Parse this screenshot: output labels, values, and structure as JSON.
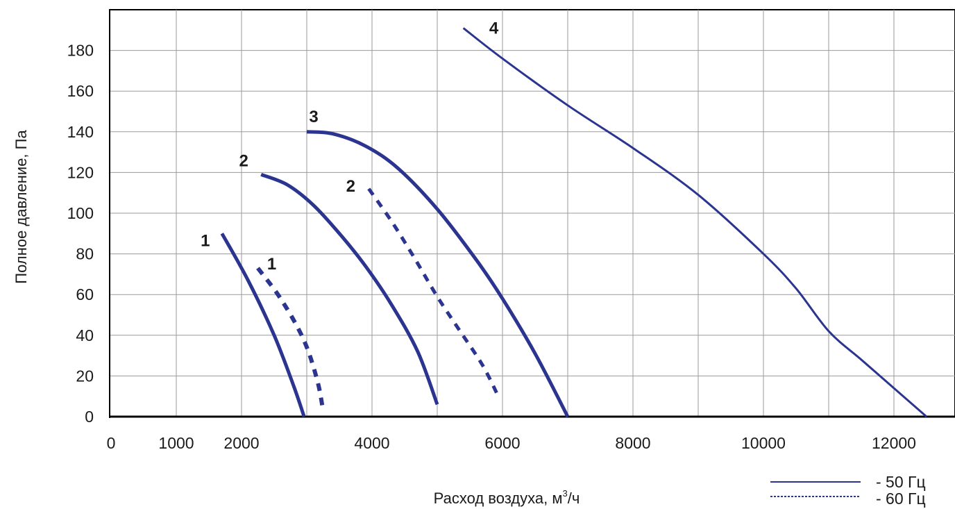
{
  "chart_data": {
    "type": "line",
    "xlabel": "Расход воздуха, м³/ч",
    "xlabel_main": "Расход воздуха, м",
    "xlabel_sup": "3",
    "xlabel_tail": "/ч",
    "ylabel": "Полное давление, Па",
    "xlim": [
      0,
      13000
    ],
    "ylim": [
      0,
      200
    ],
    "grid": true,
    "x_ticks": [
      0,
      1000,
      2000,
      4000,
      6000,
      8000,
      10000,
      12000
    ],
    "x_tick_labels": [
      "0",
      "1000",
      "2000",
      "4000",
      "6000",
      "8000",
      "10000",
      "12000"
    ],
    "y_ticks": [
      0,
      20,
      40,
      60,
      80,
      100,
      120,
      140,
      160,
      180
    ],
    "y_tick_labels": [
      "0",
      "20",
      "40",
      "60",
      "80",
      "100",
      "120",
      "140",
      "160",
      "180"
    ],
    "series": [
      {
        "name": "1",
        "label": "1",
        "style": "solid",
        "width": 5,
        "x": [
          1700,
          2100,
          2500,
          2800,
          2960
        ],
        "y": [
          90,
          67,
          40,
          15,
          0
        ]
      },
      {
        "name": "1",
        "label": "1",
        "style": "dashed",
        "width": 6,
        "x": [
          2250,
          2600,
          2950,
          3160,
          3250
        ],
        "y": [
          73,
          58,
          38,
          18,
          3
        ]
      },
      {
        "name": "2",
        "label": "2",
        "style": "solid",
        "width": 5,
        "x": [
          2300,
          2700,
          3100,
          3500,
          3900,
          4300,
          4700,
          5000
        ],
        "y": [
          119,
          114,
          104,
          90,
          74,
          55,
          32,
          6
        ]
      },
      {
        "name": "2",
        "label": "2",
        "style": "dashed",
        "width": 5,
        "x": [
          3950,
          4300,
          4650,
          5000,
          5350,
          5700,
          5950
        ],
        "y": [
          112,
          96,
          78,
          59,
          42,
          25,
          9
        ]
      },
      {
        "name": "3",
        "label": "3",
        "style": "solid",
        "width": 5,
        "x": [
          3000,
          3400,
          3900,
          4400,
          5000,
          5600,
          6000,
          6500,
          7000
        ],
        "y": [
          140,
          139,
          133,
          122,
          102,
          77,
          58,
          31,
          0
        ]
      },
      {
        "name": "4",
        "label": "4",
        "style": "solid",
        "width": 3,
        "x": [
          5400,
          6000,
          7000,
          8000,
          9000,
          10000,
          10500,
          11000,
          11500,
          12000,
          12500
        ],
        "y": [
          191,
          176,
          153,
          132,
          109,
          80,
          63,
          42,
          28,
          14,
          0
        ]
      }
    ],
    "legend": [
      {
        "label": "- 50 Гц",
        "style": "solid"
      },
      {
        "label": "- 60 Гц",
        "style": "dashed"
      }
    ],
    "colors": {
      "curve": "#2b3590",
      "grid": "#9a9a9a",
      "axis": "#000000",
      "text": "#1a1a1a"
    }
  }
}
